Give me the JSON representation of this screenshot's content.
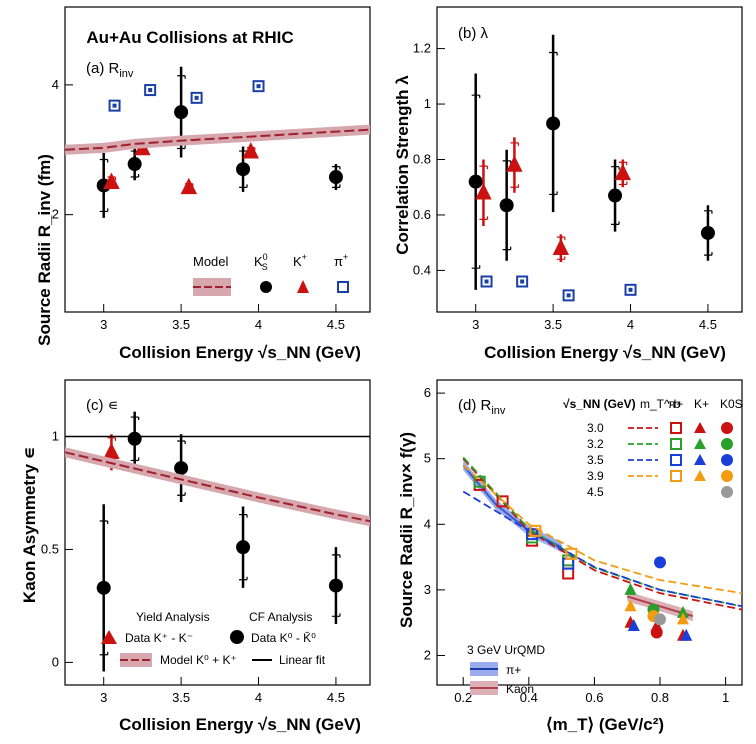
{
  "chart_data": [
    {
      "type": "scatter",
      "panel_label": "(a) R",
      "panel_label_sub": "inv",
      "title": "Au+Au Collisions at RHIC",
      "xlabel": "Collision Energy √s_NN (GeV)",
      "ylabel": "Source Radii R_inv (fm)",
      "xlim": [
        2.75,
        4.72
      ],
      "ylim": [
        0.5,
        5.2
      ],
      "xticks": [
        3,
        3.5,
        4,
        4.5
      ],
      "yticks": [
        2,
        4
      ],
      "legend": {
        "model": "Model",
        "k0s": "K",
        "k0s_sup": "0",
        "k0s_sub": "S",
        "kplus": "K",
        "kplus_sup": "+",
        "pi": "π",
        "pi_sup": "+"
      },
      "series": [
        {
          "name": "K0S",
          "marker": "circle",
          "color": "#000000",
          "points": [
            {
              "x": 3.0,
              "y": 2.45,
              "err": 0.5
            },
            {
              "x": 3.2,
              "y": 2.78,
              "err": 0.25
            },
            {
              "x": 3.5,
              "y": 3.58,
              "err": 0.7
            },
            {
              "x": 3.9,
              "y": 2.7,
              "err": 0.35
            },
            {
              "x": 4.5,
              "y": 2.58,
              "err": 0.2
            }
          ]
        },
        {
          "name": "K+",
          "marker": "triangle",
          "color": "#cc1111",
          "points": [
            {
              "x": 3.05,
              "y": 2.5,
              "err": 0.1
            },
            {
              "x": 3.25,
              "y": 3.02,
              "err": 0.1
            },
            {
              "x": 3.55,
              "y": 2.42,
              "err": 0.07
            },
            {
              "x": 3.95,
              "y": 2.97,
              "err": 0.08
            }
          ]
        },
        {
          "name": "pi+",
          "marker": "square",
          "color": "#1a3fa8",
          "points": [
            {
              "x": 3.07,
              "y": 3.68
            },
            {
              "x": 3.3,
              "y": 3.92
            },
            {
              "x": 3.6,
              "y": 3.8
            },
            {
              "x": 4.0,
              "y": 3.98
            }
          ]
        },
        {
          "name": "Model",
          "type": "dashed-band",
          "color": "#a02030",
          "points": [
            {
              "x": 2.75,
              "y": 3.0
            },
            {
              "x": 3.0,
              "y": 3.03
            },
            {
              "x": 3.2,
              "y": 3.09
            },
            {
              "x": 3.5,
              "y": 3.14
            },
            {
              "x": 4.0,
              "y": 3.21
            },
            {
              "x": 4.5,
              "y": 3.28
            },
            {
              "x": 4.72,
              "y": 3.31
            }
          ]
        }
      ]
    },
    {
      "type": "scatter",
      "panel_label": "(b) λ",
      "xlabel": "Collision Energy √s_NN (GeV)",
      "ylabel": "Correlation Strength λ",
      "xlim": [
        2.75,
        4.72
      ],
      "ylim": [
        0.25,
        1.35
      ],
      "xticks": [
        3,
        3.5,
        4,
        4.5
      ],
      "yticks": [
        0.4,
        0.6,
        0.8,
        1,
        1.2
      ],
      "series": [
        {
          "name": "K0S",
          "marker": "circle",
          "color": "#000000",
          "points": [
            {
              "x": 3.0,
              "y": 0.72,
              "err": 0.39
            },
            {
              "x": 3.2,
              "y": 0.635,
              "err": 0.2
            },
            {
              "x": 3.5,
              "y": 0.93,
              "err": 0.32
            },
            {
              "x": 3.9,
              "y": 0.67,
              "err": 0.13
            },
            {
              "x": 4.5,
              "y": 0.535,
              "err": 0.1
            }
          ]
        },
        {
          "name": "K+",
          "marker": "triangle",
          "color": "#cc1111",
          "points": [
            {
              "x": 3.05,
              "y": 0.68,
              "err": 0.12
            },
            {
              "x": 3.25,
              "y": 0.78,
              "err": 0.1
            },
            {
              "x": 3.55,
              "y": 0.48,
              "err": 0.05
            },
            {
              "x": 3.95,
              "y": 0.75,
              "err": 0.05
            }
          ]
        },
        {
          "name": "pi+",
          "marker": "square",
          "color": "#1a3fa8",
          "points": [
            {
              "x": 3.07,
              "y": 0.36
            },
            {
              "x": 3.3,
              "y": 0.36
            },
            {
              "x": 3.6,
              "y": 0.31
            },
            {
              "x": 4.0,
              "y": 0.33
            }
          ]
        }
      ]
    },
    {
      "type": "scatter",
      "panel_label": "(c) ∊",
      "xlabel": "Collision Energy √s_NN (GeV)",
      "ylabel": "Kaon Asymmetry ∊",
      "xlim": [
        2.75,
        4.72
      ],
      "ylim": [
        -0.1,
        1.25
      ],
      "xticks": [
        3,
        3.5,
        4,
        4.5
      ],
      "yticks": [
        0,
        0.5,
        1
      ],
      "legend": {
        "yield": "Yield Analysis",
        "cf": "CF Analysis",
        "data_k": "Data K⁺ - K⁻",
        "data_k0": "Data K⁰ - K̄⁰",
        "model": "Model K⁰ + K⁺",
        "fit": "Linear fit"
      },
      "series": [
        {
          "name": "Data K0 - K0bar",
          "marker": "circle",
          "color": "#000000",
          "points": [
            {
              "x": 3.0,
              "y": 0.33,
              "err": 0.37
            },
            {
              "x": 3.2,
              "y": 0.99,
              "err": 0.12
            },
            {
              "x": 3.5,
              "y": 0.86,
              "err": 0.15
            },
            {
              "x": 3.9,
              "y": 0.51,
              "err": 0.18
            },
            {
              "x": 4.5,
              "y": 0.34,
              "err": 0.17
            }
          ]
        },
        {
          "name": "Data K+ - K-",
          "marker": "triangle",
          "color": "#cc1111",
          "points": [
            {
              "x": 3.05,
              "y": 0.93,
              "err": 0.08
            }
          ]
        },
        {
          "name": "Linear fit",
          "type": "line",
          "color": "#000000",
          "points": [
            {
              "x": 2.75,
              "y": 1.0
            },
            {
              "x": 4.72,
              "y": 1.0
            }
          ]
        },
        {
          "name": "Model K0 + K+",
          "type": "dashed-band",
          "color": "#a02030",
          "points": [
            {
              "x": 2.75,
              "y": 0.93
            },
            {
              "x": 3.0,
              "y": 0.89
            },
            {
              "x": 3.5,
              "y": 0.81
            },
            {
              "x": 4.0,
              "y": 0.73
            },
            {
              "x": 4.5,
              "y": 0.655
            },
            {
              "x": 4.72,
              "y": 0.625
            }
          ]
        }
      ]
    },
    {
      "type": "scatter",
      "panel_label": "(d) R",
      "panel_label_sub": "inv",
      "xlabel": "⟨m_T⟩ (GeV/c²)",
      "ylabel": "Source Radii R_inv× f(γ)",
      "xlim": [
        0.12,
        1.05
      ],
      "ylim": [
        1.55,
        6.2
      ],
      "xticks": [
        0.2,
        0.4,
        0.6,
        0.8,
        1
      ],
      "yticks": [
        2,
        3,
        4,
        5,
        6
      ],
      "legend": {
        "energy_header": "√s_NN (GeV)",
        "mt_header": "m_T^-b",
        "pi_header": "π+",
        "k_header": "K+",
        "k0s_header": "K0S",
        "energies": [
          "3.0",
          "3.2",
          "3.5",
          "3.9",
          "4.5"
        ],
        "urqmd": "3 GeV UrQMD",
        "urqmd_pi": "π+",
        "urqmd_kaon": "Kaon"
      },
      "series": [
        {
          "name": "3.0",
          "color": "#cc1111",
          "fit": [
            {
              "x": 0.2,
              "y": 5.0
            },
            {
              "x": 0.4,
              "y": 3.9
            },
            {
              "x": 0.6,
              "y": 3.3
            },
            {
              "x": 0.8,
              "y": 2.95
            },
            {
              "x": 1.05,
              "y": 2.7
            }
          ],
          "pi": [
            {
              "x": 0.25,
              "y": 4.6
            },
            {
              "x": 0.32,
              "y": 4.35
            },
            {
              "x": 0.41,
              "y": 3.75
            },
            {
              "x": 0.52,
              "y": 3.25
            }
          ],
          "kplus": [
            {
              "x": 0.71,
              "y": 2.5
            },
            {
              "x": 0.79,
              "y": 2.45
            },
            {
              "x": 0.87,
              "y": 2.3
            }
          ],
          "k0s": [
            {
              "x": 0.79,
              "y": 2.35
            }
          ]
        },
        {
          "name": "3.2",
          "color": "#2aa02a",
          "fit": [
            {
              "x": 0.2,
              "y": 5.02
            },
            {
              "x": 0.4,
              "y": 3.93
            },
            {
              "x": 0.6,
              "y": 3.34
            },
            {
              "x": 0.8,
              "y": 3.0
            },
            {
              "x": 1.05,
              "y": 2.75
            }
          ],
          "pi": [
            {
              "x": 0.25,
              "y": 4.65
            },
            {
              "x": 0.41,
              "y": 3.8
            },
            {
              "x": 0.52,
              "y": 3.45
            }
          ],
          "kplus": [
            {
              "x": 0.71,
              "y": 3.0
            },
            {
              "x": 0.87,
              "y": 2.65
            }
          ],
          "k0s": [
            {
              "x": 0.78,
              "y": 2.7
            }
          ]
        },
        {
          "name": "3.5",
          "color": "#1a3fd8",
          "fit": [
            {
              "x": 0.2,
              "y": 4.5
            },
            {
              "x": 0.4,
              "y": 3.9
            },
            {
              "x": 0.6,
              "y": 3.35
            },
            {
              "x": 0.8,
              "y": 3.0
            },
            {
              "x": 1.05,
              "y": 2.75
            }
          ],
          "pi": [
            {
              "x": 0.41,
              "y": 3.85
            },
            {
              "x": 0.52,
              "y": 3.4
            }
          ],
          "kplus": [
            {
              "x": 0.72,
              "y": 2.45
            },
            {
              "x": 0.88,
              "y": 2.3
            }
          ],
          "k0s": [
            {
              "x": 0.8,
              "y": 3.42
            }
          ]
        },
        {
          "name": "3.9",
          "color": "#f39c12",
          "fit": [
            {
              "x": 0.2,
              "y": 4.9
            },
            {
              "x": 0.4,
              "y": 4.0
            },
            {
              "x": 0.6,
              "y": 3.45
            },
            {
              "x": 0.8,
              "y": 3.15
            },
            {
              "x": 1.05,
              "y": 2.95
            }
          ],
          "pi": [
            {
              "x": 0.42,
              "y": 3.9
            },
            {
              "x": 0.53,
              "y": 3.55
            }
          ],
          "kplus": [
            {
              "x": 0.71,
              "y": 2.75
            },
            {
              "x": 0.87,
              "y": 2.55
            }
          ],
          "k0s": [
            {
              "x": 0.78,
              "y": 2.6
            }
          ]
        },
        {
          "name": "4.5",
          "color": "#999999",
          "k0s": [
            {
              "x": 0.8,
              "y": 2.55
            }
          ]
        }
      ],
      "model_bands": [
        {
          "name": "π+",
          "color": "#3b5ccf",
          "points": [
            {
              "x": 0.2,
              "y": 4.9
            },
            {
              "x": 0.3,
              "y": 4.3
            },
            {
              "x": 0.4,
              "y": 3.9
            },
            {
              "x": 0.5,
              "y": 3.65
            }
          ]
        },
        {
          "name": "Kaon",
          "color": "#b04050",
          "points": [
            {
              "x": 0.7,
              "y": 2.9
            },
            {
              "x": 0.8,
              "y": 2.75
            },
            {
              "x": 0.9,
              "y": 2.6
            }
          ]
        }
      ]
    }
  ]
}
